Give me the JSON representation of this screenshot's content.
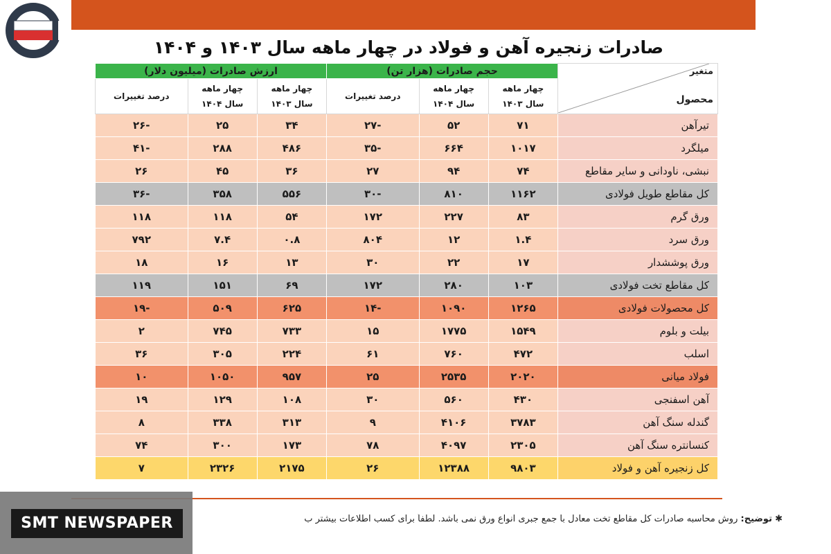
{
  "title": "صادرات زنجیره آهن و فولاد در چهار ماهه سال ۱۴۰۳ و ۱۴۰۴",
  "header": {
    "corner_top": "متغیر",
    "corner_bottom": "محصول",
    "volume_group": "حجم صادرات (هزار تن)",
    "value_group": "ارزش صادرات (میلیون دلار)",
    "sub_1403_a": "چهار ماهه",
    "sub_1403_b": "سال ۱۴۰۳",
    "sub_1404_a": "چهار ماهه",
    "sub_1404_b": "سال ۱۴۰۴",
    "sub_change": "درصد تغییرات"
  },
  "rows": [
    {
      "product": "تیرآهن",
      "v1403": "۷۱",
      "v1404": "۵۲",
      "vchg": "-۲۷",
      "d1403": "۳۴",
      "d1404": "۲۵",
      "dchg": "-۲۶"
    },
    {
      "product": "میلگرد",
      "v1403": "۱۰۱۷",
      "v1404": "۶۶۴",
      "vchg": "-۳۵",
      "d1403": "۴۸۶",
      "d1404": "۲۸۸",
      "dchg": "-۴۱"
    },
    {
      "product": "نبشی، ناودانی و سایر مقاطع",
      "v1403": "۷۴",
      "v1404": "۹۴",
      "vchg": "۲۷",
      "d1403": "۳۶",
      "d1404": "۴۵",
      "dchg": "۲۶"
    },
    {
      "product": "کل مقاطع طویل فولادی",
      "v1403": "۱۱۶۲",
      "v1404": "۸۱۰",
      "vchg": "-۳۰",
      "d1403": "۵۵۶",
      "d1404": "۳۵۸",
      "dchg": "-۳۶"
    },
    {
      "product": "ورق گرم",
      "v1403": "۸۳",
      "v1404": "۲۲۷",
      "vchg": "۱۷۲",
      "d1403": "۵۴",
      "d1404": "۱۱۸",
      "dchg": "۱۱۸"
    },
    {
      "product": "ورق سرد",
      "v1403": "۱.۴",
      "v1404": "۱۲",
      "vchg": "۸۰۴",
      "d1403": "۰.۸",
      "d1404": "۷.۴",
      "dchg": "۷۹۲"
    },
    {
      "product": "ورق پوششدار",
      "v1403": "۱۷",
      "v1404": "۲۲",
      "vchg": "۳۰",
      "d1403": "۱۳",
      "d1404": "۱۶",
      "dchg": "۱۸"
    },
    {
      "product": "کل مقاطع تخت فولادی",
      "v1403": "۱۰۳",
      "v1404": "۲۸۰",
      "vchg": "۱۷۲",
      "d1403": "۶۹",
      "d1404": "۱۵۱",
      "dchg": "۱۱۹"
    },
    {
      "product": "کل محصولات فولادی",
      "v1403": "۱۲۶۵",
      "v1404": "۱۰۹۰",
      "vchg": "-۱۴",
      "d1403": "۶۲۵",
      "d1404": "۵۰۹",
      "dchg": "-۱۹"
    },
    {
      "product": "بیلت و بلوم",
      "v1403": "۱۵۴۹",
      "v1404": "۱۷۷۵",
      "vchg": "۱۵",
      "d1403": "۷۳۳",
      "d1404": "۷۴۵",
      "dchg": "۲"
    },
    {
      "product": "اسلب",
      "v1403": "۴۷۲",
      "v1404": "۷۶۰",
      "vchg": "۶۱",
      "d1403": "۲۲۴",
      "d1404": "۳۰۵",
      "dchg": "۳۶"
    },
    {
      "product": "فولاد میانی",
      "v1403": "۲۰۲۰",
      "v1404": "۲۵۳۵",
      "vchg": "۲۵",
      "d1403": "۹۵۷",
      "d1404": "۱۰۵۰",
      "dchg": "۱۰"
    },
    {
      "product": "آهن اسفنجی",
      "v1403": "۴۳۰",
      "v1404": "۵۶۰",
      "vchg": "۳۰",
      "d1403": "۱۰۸",
      "d1404": "۱۲۹",
      "dchg": "۱۹"
    },
    {
      "product": "گندله سنگ آهن",
      "v1403": "۳۷۸۳",
      "v1404": "۴۱۰۶",
      "vchg": "۹",
      "d1403": "۳۱۳",
      "d1404": "۳۳۸",
      "dchg": "۸"
    },
    {
      "product": "کنسانتره سنگ آهن",
      "v1403": "۲۳۰۵",
      "v1404": "۴۰۹۷",
      "vchg": "۷۸",
      "d1403": "۱۷۳",
      "d1404": "۳۰۰",
      "dchg": "۷۴"
    },
    {
      "product": "کل زنجیره آهن و فولاد",
      "v1403": "۹۸۰۳",
      "v1404": "۱۲۳۸۸",
      "vchg": "۲۶",
      "d1403": "۲۱۷۵",
      "d1404": "۲۳۲۶",
      "dchg": "۷"
    }
  ],
  "footnote": {
    "label": "توضیح:",
    "text": "روش محاسبه صادرات کل مقاطع تخت معادل با جمع جبری انواع ورق نمی باشد. لطفاً برای کسب اطلاعات بیشتر ب"
  },
  "brand": "SMT NEWSPAPER",
  "colors": {
    "top_bar": "#d4541d",
    "group_header": "#3bb44a",
    "row_light": "#fbd3bb",
    "row_gray": "#bfbfbf",
    "row_strong": "#f2916b",
    "row_total": "#fdd76b"
  }
}
